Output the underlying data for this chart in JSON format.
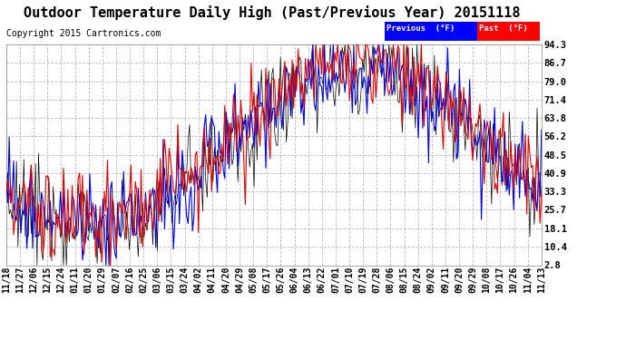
{
  "title": "Outdoor Temperature Daily High (Past/Previous Year) 20151118",
  "copyright": "Copyright 2015 Cartronics.com",
  "legend_blue_label": "Previous  (°F)",
  "legend_red_label": "Past  (°F)",
  "yticks": [
    2.8,
    10.4,
    18.1,
    25.7,
    33.3,
    40.9,
    48.5,
    56.2,
    63.8,
    71.4,
    79.0,
    86.7,
    94.3
  ],
  "ylim": [
    2.8,
    94.3
  ],
  "background_color": "#ffffff",
  "plot_bg_color": "#ffffff",
  "grid_color": "#aaaaaa",
  "line_color_blue": "#0000dd",
  "line_color_red": "#dd0000",
  "line_color_black": "#000000",
  "title_fontsize": 11,
  "tick_fontsize": 7.5,
  "copyright_fontsize": 7
}
